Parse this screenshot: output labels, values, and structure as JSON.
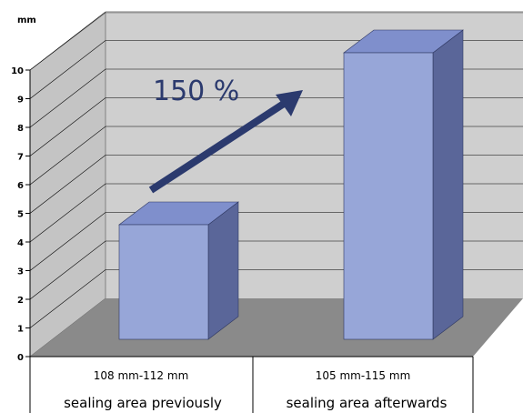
{
  "chart_data": {
    "type": "bar",
    "y_unit": "mm",
    "ylim": [
      0,
      10
    ],
    "yticks": [
      "0",
      "1",
      "2",
      "3",
      "4",
      "5",
      "6",
      "7",
      "8",
      "9",
      "10"
    ],
    "categories": [
      "108 mm-112 mm",
      "105 mm-115 mm"
    ],
    "sublabels": [
      "sealing area previously",
      "sealing area afterwards"
    ],
    "values": [
      4.0,
      10.0
    ],
    "annotation": "150 %",
    "grid": true
  },
  "colors": {
    "bar_front": "#97a6d8",
    "bar_top": "#7f8fcc",
    "bar_side": "#5a6699",
    "wall": "#cfcfcf",
    "floor": "#8a8a8a",
    "arrow": "#2b3a6e"
  }
}
